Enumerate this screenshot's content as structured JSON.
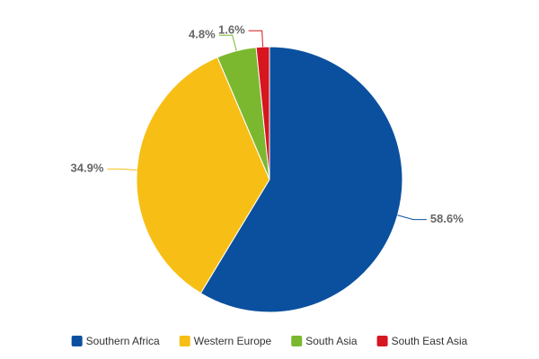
{
  "chart_data": {
    "type": "pie",
    "categories": [
      "Southern Africa",
      "Western Europe",
      "South Asia",
      "South East Asia"
    ],
    "values": [
      58.6,
      34.9,
      4.8,
      1.6
    ],
    "value_labels": [
      "58.6%",
      "34.9%",
      "4.8%",
      "1.6%"
    ],
    "colors": [
      "#0b509e",
      "#f7be16",
      "#7cb82f",
      "#d7161f"
    ],
    "legend": "bottom"
  }
}
